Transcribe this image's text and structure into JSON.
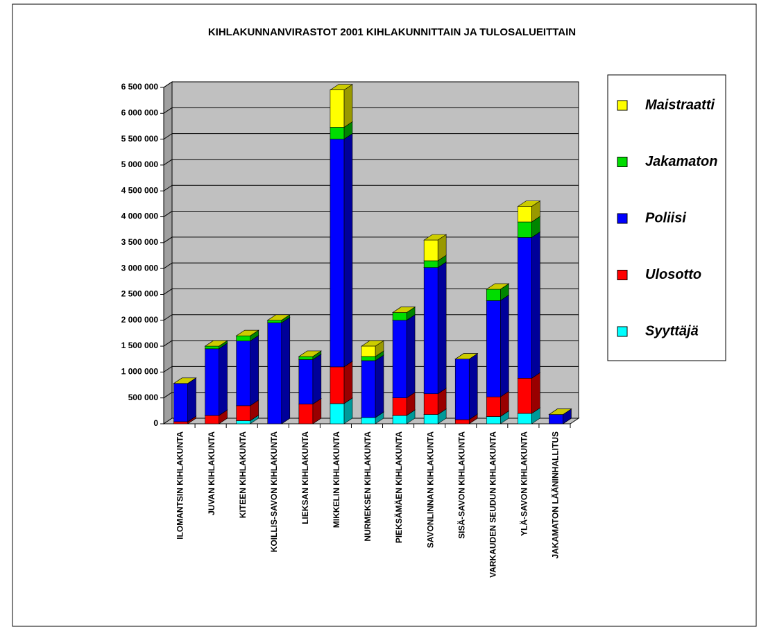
{
  "chart_data": {
    "type": "bar3d_stacked",
    "title": "KIHLAKUNNANVIRASTOT 2001 KIHLAKUNNITTAIN JA TULOSALUEITTAIN",
    "categories": [
      "ILOMANTSIN KIHLAKUNTA",
      "JUVAN KIHLAKUNTA",
      "KITEEN KIHLAKUNTA",
      "KOILLIS-SAVON KIHLAKUNTA",
      "LIEKSAN KIHLAKUNTA",
      "MIKKELIN KIHLAKUNTA",
      "NURMEKSEN KIHLAKUNTA",
      "PIEKSÄMÄEN KIHLAKUNTA",
      "SAVONLINNAN KIHLAKUNTA",
      "SISÄ-SAVON KIHLAKUNTA",
      "VARKAUDEN SEUDUN KIHLAKUNTA",
      "YLÄ-SAVON KIHLAKUNTA",
      "JAKAMATON LÄÄNINHALLITUS"
    ],
    "series": [
      {
        "name": "Syyttäjä",
        "color": "#00ffff",
        "values": [
          0,
          0,
          60000,
          0,
          0,
          390000,
          120000,
          160000,
          180000,
          0,
          140000,
          200000,
          0
        ]
      },
      {
        "name": "Ulosotto",
        "color": "#ff0000",
        "values": [
          40000,
          160000,
          290000,
          0,
          380000,
          710000,
          0,
          340000,
          400000,
          80000,
          380000,
          680000,
          0
        ]
      },
      {
        "name": "Poliisi",
        "color": "#0000ff",
        "values": [
          740000,
          1290000,
          1250000,
          1950000,
          860000,
          4400000,
          1100000,
          1500000,
          2440000,
          1170000,
          1860000,
          2720000,
          180000
        ]
      },
      {
        "name": "Jakamaton",
        "color": "#00dd00",
        "values": [
          0,
          50000,
          100000,
          50000,
          60000,
          230000,
          80000,
          150000,
          130000,
          0,
          220000,
          300000,
          0
        ]
      },
      {
        "name": "Maistraatti",
        "color": "#ffff00",
        "values": [
          0,
          0,
          0,
          0,
          0,
          720000,
          200000,
          0,
          400000,
          0,
          0,
          300000,
          0
        ]
      }
    ],
    "ylim": [
      0,
      6500000
    ],
    "yticks": [
      0,
      {
        "value": 500000,
        "label": "500 000"
      },
      {
        "value": 1000000,
        "label": "1 000 000"
      },
      {
        "value": 1500000,
        "label": "1 500 000"
      },
      {
        "value": 2000000,
        "label": "2 000 000"
      },
      {
        "value": 2500000,
        "label": "2 500 000"
      },
      {
        "value": 3000000,
        "label": "3 000 000"
      },
      {
        "value": 3500000,
        "label": "3 500 000"
      },
      {
        "value": 4000000,
        "label": "4 000 000"
      },
      {
        "value": 4500000,
        "label": "4 500 000"
      },
      {
        "value": 5000000,
        "label": "5 000 000"
      },
      {
        "value": 5500000,
        "label": "5 500 000"
      },
      {
        "value": 6000000,
        "label": "6 000 000"
      },
      {
        "value": 6500000,
        "label": "6 500 000"
      }
    ],
    "grid": true
  }
}
